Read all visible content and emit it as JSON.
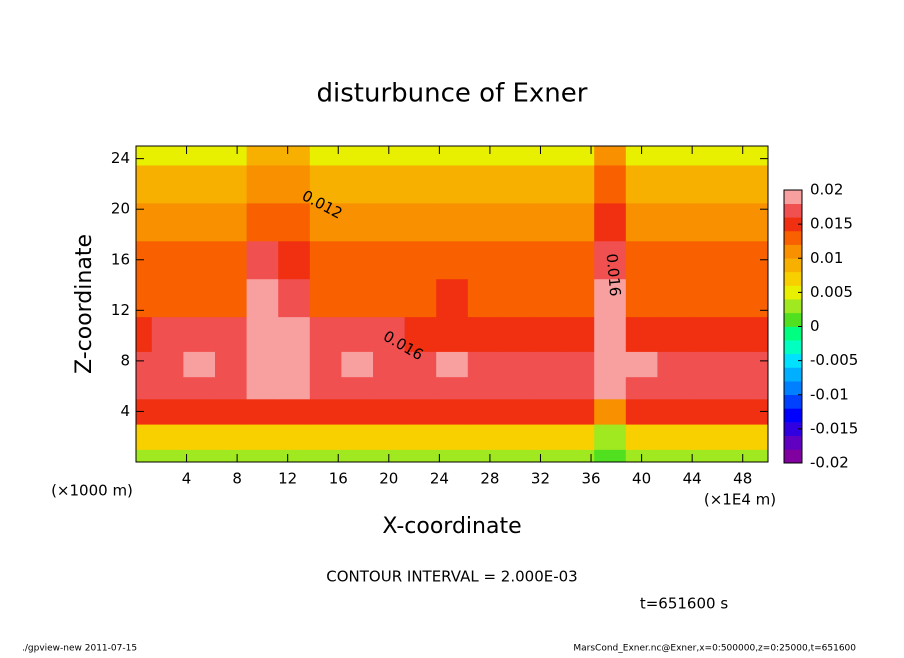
{
  "chart_data": {
    "type": "contour",
    "title": "disturbunce of Exner",
    "x_label": "X-coordinate",
    "y_label": "Z-coordinate",
    "y_unit": "(×1000 m)",
    "x_unit": "(×1E4 m)",
    "contour_interval": "CONTOUR INTERVAL = 2.000E-03",
    "time_label": "t=651600 s",
    "footer_left": "./gpview-new  2011-07-15",
    "footer_right": "MarsCond_Exner.nc@Exner,x=0:500000,z=0:25000,t=651600",
    "annotations": [
      "0.012",
      "0.016",
      "0.016"
    ],
    "xlim": [
      0,
      50
    ],
    "ylim": [
      0,
      25
    ],
    "xticks": [
      4,
      8,
      12,
      16,
      20,
      24,
      28,
      32,
      36,
      40,
      44,
      48
    ],
    "yticks": [
      4,
      8,
      12,
      16,
      20,
      24
    ],
    "x": [
      0,
      2.5,
      5,
      7.5,
      10,
      12.5,
      15,
      17.5,
      20,
      22.5,
      25,
      27.5,
      30,
      32.5,
      35,
      37.5,
      40,
      42.5,
      45,
      47.5,
      50
    ],
    "y": [
      0,
      2,
      4,
      6,
      7.5,
      10,
      13,
      16,
      19,
      22,
      25
    ],
    "z": [
      [
        0.002,
        0.002,
        0.002,
        0.002,
        0.002,
        0.002,
        0.002,
        0.002,
        0.002,
        0.002,
        0.002,
        0.002,
        0.002,
        0.002,
        0.002,
        0,
        0.002,
        0.002,
        0.002,
        0.002,
        0.002
      ],
      [
        0.007,
        0.007,
        0.007,
        0.007,
        0.006,
        0.006,
        0.007,
        0.007,
        0.007,
        0.007,
        0.007,
        0.007,
        0.007,
        0.007,
        0.007,
        0.003,
        0.007,
        0.007,
        0.007,
        0.007,
        0.007
      ],
      [
        0.014,
        0.014,
        0.014,
        0.014,
        0.014,
        0.014,
        0.014,
        0.014,
        0.014,
        0.014,
        0.014,
        0.014,
        0.014,
        0.014,
        0.014,
        0.01,
        0.014,
        0.014,
        0.014,
        0.014,
        0.014
      ],
      [
        0.017,
        0.017,
        0.017,
        0.017,
        0.019,
        0.019,
        0.017,
        0.017,
        0.017,
        0.017,
        0.017,
        0.017,
        0.017,
        0.017,
        0.017,
        0.018,
        0.017,
        0.017,
        0.017,
        0.017,
        0.017
      ],
      [
        0.016,
        0.0175,
        0.018,
        0.0175,
        0.02,
        0.0195,
        0.0175,
        0.0185,
        0.0175,
        0.0175,
        0.018,
        0.0175,
        0.0175,
        0.0175,
        0.0175,
        0.02,
        0.018,
        0.0175,
        0.0175,
        0.0175,
        0.017
      ],
      [
        0.015,
        0.016,
        0.016,
        0.016,
        0.0195,
        0.019,
        0.016,
        0.016,
        0.016,
        0.015,
        0.015,
        0.015,
        0.015,
        0.015,
        0.015,
        0.019,
        0.015,
        0.015,
        0.015,
        0.015,
        0.015
      ],
      [
        0.0135,
        0.0135,
        0.0135,
        0.0135,
        0.018,
        0.0175,
        0.0135,
        0.0135,
        0.0135,
        0.0135,
        0.014,
        0.0135,
        0.0135,
        0.0135,
        0.0135,
        0.0185,
        0.0135,
        0.0135,
        0.0135,
        0.0135,
        0.0135
      ],
      [
        0.012,
        0.012,
        0.012,
        0.012,
        0.016,
        0.0155,
        0.012,
        0.012,
        0.012,
        0.012,
        0.012,
        0.012,
        0.012,
        0.012,
        0.013,
        0.017,
        0.013,
        0.012,
        0.012,
        0.012,
        0.012
      ],
      [
        0.0105,
        0.0105,
        0.0105,
        0.0105,
        0.013,
        0.013,
        0.0105,
        0.0105,
        0.0105,
        0.0105,
        0.0105,
        0.0105,
        0.0105,
        0.0105,
        0.0105,
        0.0155,
        0.0105,
        0.0105,
        0.0105,
        0.0105,
        0.0105
      ],
      [
        0.0085,
        0.0085,
        0.0085,
        0.0085,
        0.0105,
        0.011,
        0.0085,
        0.0085,
        0.0085,
        0.0085,
        0.0085,
        0.0085,
        0.0085,
        0.0085,
        0.0085,
        0.0125,
        0.0085,
        0.0085,
        0.0085,
        0.0085,
        0.0085
      ],
      [
        0.005,
        0.005,
        0.005,
        0.005,
        0.0085,
        0.008,
        0.005,
        0.005,
        0.005,
        0.005,
        0.005,
        0.005,
        0.005,
        0.005,
        0.005,
        0.01,
        0.005,
        0.005,
        0.004,
        0.005,
        0.005
      ]
    ],
    "colorbar": {
      "levels": [
        -0.02,
        -0.018,
        -0.016,
        -0.014,
        -0.012,
        -0.01,
        -0.008,
        -0.006,
        -0.004,
        -0.002,
        0,
        0.002,
        0.004,
        0.006,
        0.008,
        0.01,
        0.012,
        0.014,
        0.016,
        0.018,
        0.02
      ],
      "colors": [
        "#8000a0",
        "#6000c0",
        "#3000e0",
        "#0000ff",
        "#0040ff",
        "#0080ff",
        "#00b0ff",
        "#00e0ff",
        "#00ffc0",
        "#00ff80",
        "#50e020",
        "#a0e820",
        "#e8f000",
        "#f8d000",
        "#f8b000",
        "#f89000",
        "#f86000",
        "#f03010",
        "#f05050",
        "#f8a0a0"
      ],
      "ticks": [
        0.02,
        0.015,
        0.01,
        0.005,
        0,
        -0.005,
        -0.01,
        -0.015,
        -0.02
      ]
    }
  }
}
